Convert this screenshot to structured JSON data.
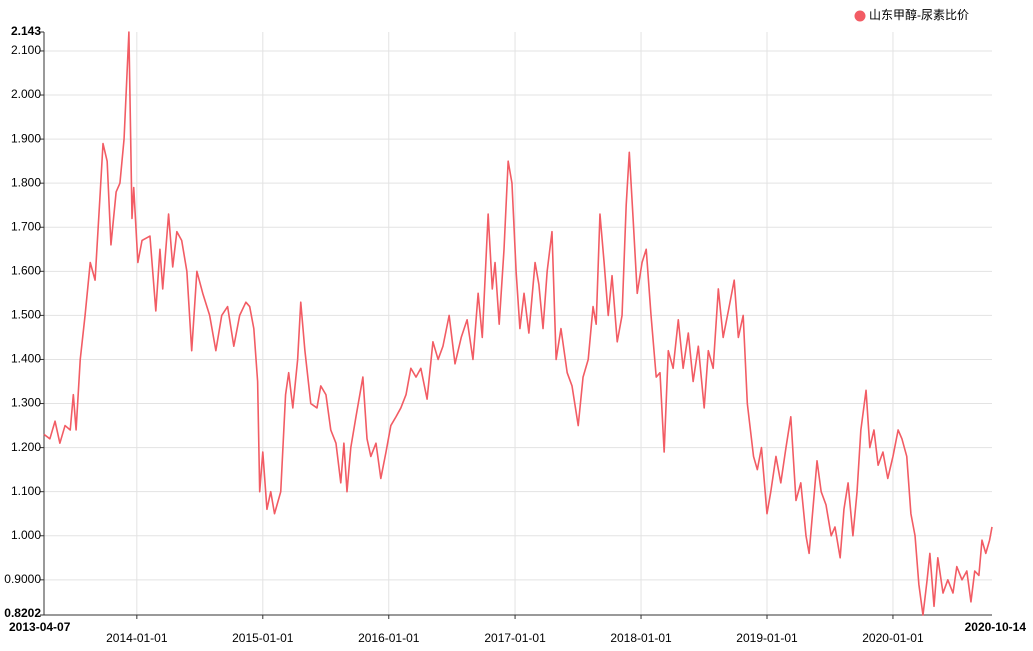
{
  "chart_data": {
    "type": "line",
    "xlim": [
      "2013-04-07",
      "2020-10-14"
    ],
    "xticks": [
      "2014-01-01",
      "2015-01-01",
      "2016-01-01",
      "2017-01-01",
      "2018-01-01",
      "2019-01-01",
      "2020-01-01"
    ],
    "ylim": [
      0.8202,
      2.143
    ],
    "yticks": [
      {
        "value": 0.9,
        "label": "0.9000"
      },
      {
        "value": 1.0,
        "label": "1.000"
      },
      {
        "value": 1.1,
        "label": "1.100"
      },
      {
        "value": 1.2,
        "label": "1.200"
      },
      {
        "value": 1.3,
        "label": "1.300"
      },
      {
        "value": 1.4,
        "label": "1.400"
      },
      {
        "value": 1.5,
        "label": "1.500"
      },
      {
        "value": 1.6,
        "label": "1.600"
      },
      {
        "value": 1.7,
        "label": "1.700"
      },
      {
        "value": 1.8,
        "label": "1.800"
      },
      {
        "value": 1.9,
        "label": "1.900"
      },
      {
        "value": 2.0,
        "label": "2.000"
      },
      {
        "value": 2.1,
        "label": "2.100"
      }
    ],
    "grid": true,
    "legend": "top-right",
    "x": [
      "2013-04-07",
      "2013-04-24",
      "2013-05-09",
      "2013-05-23",
      "2013-06-07",
      "2013-06-22",
      "2013-07-01",
      "2013-07-09",
      "2013-07-21",
      "2013-08-04",
      "2013-08-19",
      "2013-09-02",
      "2013-09-17",
      "2013-09-25",
      "2013-10-07",
      "2013-10-18",
      "2013-11-02",
      "2013-11-13",
      "2013-11-25",
      "2013-12-09",
      "2013-12-18",
      "2013-12-23",
      "2014-01-04",
      "2014-01-16",
      "2014-02-08",
      "2014-02-25",
      "2014-03-09",
      "2014-03-17",
      "2014-04-03",
      "2014-04-15",
      "2014-04-27",
      "2014-05-11",
      "2014-05-26",
      "2014-06-09",
      "2014-06-24",
      "2014-07-11",
      "2014-07-31",
      "2014-08-18",
      "2014-09-04",
      "2014-09-21",
      "2014-10-09",
      "2014-10-26",
      "2014-11-13",
      "2014-11-24",
      "2014-12-06",
      "2014-12-17",
      "2014-12-23",
      "2015-01-01",
      "2015-01-13",
      "2015-01-24",
      "2015-02-04",
      "2015-02-22",
      "2015-03-08",
      "2015-03-17",
      "2015-03-29",
      "2015-04-12",
      "2015-04-21",
      "2015-05-03",
      "2015-05-20",
      "2015-06-07",
      "2015-06-18",
      "2015-07-03",
      "2015-07-17",
      "2015-08-01",
      "2015-08-15",
      "2015-08-24",
      "2015-09-02",
      "2015-09-13",
      "2015-09-28",
      "2015-10-18",
      "2015-10-30",
      "2015-11-10",
      "2015-11-25",
      "2015-12-09",
      "2015-12-24",
      "2016-01-07",
      "2016-01-22",
      "2016-02-05",
      "2016-02-20",
      "2016-03-05",
      "2016-03-20",
      "2016-04-03",
      "2016-04-21",
      "2016-05-08",
      "2016-05-23",
      "2016-06-06",
      "2016-06-24",
      "2016-07-11",
      "2016-07-29",
      "2016-08-15",
      "2016-09-01",
      "2016-09-16",
      "2016-09-28",
      "2016-10-15",
      "2016-10-27",
      "2016-11-04",
      "2016-11-16",
      "2016-11-30",
      "2016-12-12",
      "2016-12-23",
      "2017-01-04",
      "2017-01-15",
      "2017-01-27",
      "2017-02-10",
      "2017-02-28",
      "2017-03-11",
      "2017-03-23",
      "2017-04-04",
      "2017-04-18",
      "2017-04-30",
      "2017-05-14",
      "2017-06-01",
      "2017-06-15",
      "2017-07-03",
      "2017-07-17",
      "2017-08-01",
      "2017-08-15",
      "2017-08-24",
      "2017-09-04",
      "2017-09-16",
      "2017-09-28",
      "2017-10-09",
      "2017-10-24",
      "2017-11-07",
      "2017-11-19",
      "2017-11-28",
      "2017-12-09",
      "2017-12-21",
      "2018-01-04",
      "2018-01-16",
      "2018-01-30",
      "2018-02-14",
      "2018-02-25",
      "2018-03-09",
      "2018-03-21",
      "2018-04-04",
      "2018-04-19",
      "2018-05-03",
      "2018-05-18",
      "2018-06-01",
      "2018-06-16",
      "2018-07-03",
      "2018-07-15",
      "2018-07-29",
      "2018-08-13",
      "2018-08-27",
      "2018-09-11",
      "2018-09-28",
      "2018-10-10",
      "2018-10-24",
      "2018-11-05",
      "2018-11-23",
      "2018-12-04",
      "2018-12-16",
      "2019-01-01",
      "2019-01-12",
      "2019-01-27",
      "2019-02-10",
      "2019-02-25",
      "2019-03-11",
      "2019-03-26",
      "2019-04-09",
      "2019-04-24",
      "2019-05-03",
      "2019-05-14",
      "2019-05-26",
      "2019-06-07",
      "2019-06-21",
      "2019-07-06",
      "2019-07-17",
      "2019-08-01",
      "2019-08-12",
      "2019-08-24",
      "2019-09-07",
      "2019-09-19",
      "2019-09-30",
      "2019-10-15",
      "2019-10-26",
      "2019-11-07",
      "2019-11-19",
      "2019-12-03",
      "2019-12-17",
      "2020-01-01",
      "2020-01-16",
      "2020-01-27",
      "2020-02-10",
      "2020-02-22",
      "2020-03-05",
      "2020-03-16",
      "2020-03-28",
      "2020-04-09",
      "2020-04-17",
      "2020-04-29",
      "2020-05-10",
      "2020-05-25",
      "2020-06-08",
      "2020-06-23",
      "2020-07-04",
      "2020-07-19",
      "2020-08-02",
      "2020-08-14",
      "2020-08-25",
      "2020-09-06",
      "2020-09-15",
      "2020-09-26",
      "2020-10-07",
      "2020-10-14"
    ],
    "series": [
      {
        "name": "山东甲醇-尿素比价",
        "color": "#f25c64",
        "values": [
          1.23,
          1.22,
          1.26,
          1.21,
          1.25,
          1.24,
          1.32,
          1.24,
          1.4,
          1.5,
          1.62,
          1.58,
          1.78,
          1.89,
          1.85,
          1.66,
          1.78,
          1.8,
          1.9,
          2.143,
          1.72,
          1.79,
          1.62,
          1.67,
          1.68,
          1.51,
          1.65,
          1.56,
          1.73,
          1.61,
          1.69,
          1.67,
          1.6,
          1.42,
          1.6,
          1.55,
          1.5,
          1.42,
          1.5,
          1.52,
          1.43,
          1.5,
          1.53,
          1.52,
          1.47,
          1.35,
          1.1,
          1.19,
          1.06,
          1.1,
          1.05,
          1.1,
          1.32,
          1.37,
          1.29,
          1.4,
          1.53,
          1.42,
          1.3,
          1.29,
          1.34,
          1.32,
          1.24,
          1.21,
          1.12,
          1.21,
          1.1,
          1.2,
          1.27,
          1.36,
          1.22,
          1.18,
          1.21,
          1.13,
          1.19,
          1.25,
          1.27,
          1.29,
          1.32,
          1.38,
          1.36,
          1.38,
          1.31,
          1.44,
          1.4,
          1.43,
          1.5,
          1.39,
          1.45,
          1.49,
          1.4,
          1.55,
          1.45,
          1.73,
          1.56,
          1.62,
          1.48,
          1.65,
          1.85,
          1.8,
          1.6,
          1.47,
          1.55,
          1.46,
          1.62,
          1.57,
          1.47,
          1.6,
          1.69,
          1.4,
          1.47,
          1.37,
          1.34,
          1.25,
          1.36,
          1.4,
          1.52,
          1.48,
          1.73,
          1.62,
          1.5,
          1.59,
          1.44,
          1.5,
          1.75,
          1.87,
          1.72,
          1.55,
          1.62,
          1.65,
          1.5,
          1.36,
          1.37,
          1.19,
          1.42,
          1.38,
          1.49,
          1.38,
          1.46,
          1.35,
          1.43,
          1.29,
          1.42,
          1.38,
          1.56,
          1.45,
          1.51,
          1.58,
          1.45,
          1.5,
          1.3,
          1.18,
          1.15,
          1.2,
          1.05,
          1.1,
          1.18,
          1.12,
          1.2,
          1.27,
          1.08,
          1.12,
          1.0,
          0.96,
          1.06,
          1.17,
          1.1,
          1.07,
          1.0,
          1.02,
          0.95,
          1.06,
          1.12,
          1.0,
          1.1,
          1.24,
          1.33,
          1.2,
          1.24,
          1.16,
          1.19,
          1.13,
          1.18,
          1.24,
          1.22,
          1.18,
          1.05,
          1.0,
          0.89,
          0.82,
          0.9,
          0.96,
          0.84,
          0.95,
          0.87,
          0.9,
          0.87,
          0.93,
          0.9,
          0.92,
          0.85,
          0.92,
          0.91,
          0.99,
          0.96,
          0.99,
          1.02
        ]
      }
    ]
  }
}
